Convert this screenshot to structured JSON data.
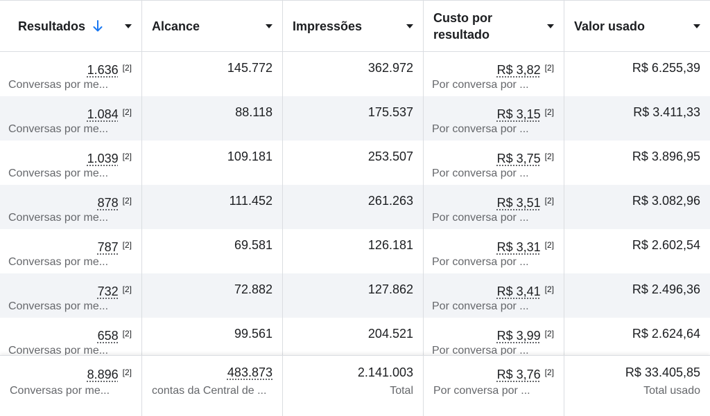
{
  "columns": [
    {
      "label": "Resultados",
      "sorted": true,
      "sort_icon": "arrow-down-icon"
    },
    {
      "label": "Alcance"
    },
    {
      "label": "Impressões"
    },
    {
      "label": "Custo por resultado"
    },
    {
      "label": "Valor usado"
    }
  ],
  "rows": [
    {
      "resultados": "1.636",
      "resultados_note": "[2]",
      "resultados_sub": "Conversas por me...",
      "alcance": "145.772",
      "impressoes": "362.972",
      "custo": "R$ 3,82",
      "custo_note": "[2]",
      "custo_sub": "Por conversa por ...",
      "valor": "R$ 6.255,39"
    },
    {
      "resultados": "1.084",
      "resultados_note": "[2]",
      "resultados_sub": "Conversas por me...",
      "alcance": "88.118",
      "impressoes": "175.537",
      "custo": "R$ 3,15",
      "custo_note": "[2]",
      "custo_sub": "Por conversa por ...",
      "valor": "R$ 3.411,33"
    },
    {
      "resultados": "1.039",
      "resultados_note": "[2]",
      "resultados_sub": "Conversas por me...",
      "alcance": "109.181",
      "impressoes": "253.507",
      "custo": "R$ 3,75",
      "custo_note": "[2]",
      "custo_sub": "Por conversa por ...",
      "valor": "R$ 3.896,95"
    },
    {
      "resultados": "878",
      "resultados_note": "[2]",
      "resultados_sub": "Conversas por me...",
      "alcance": "111.452",
      "impressoes": "261.263",
      "custo": "R$ 3,51",
      "custo_note": "[2]",
      "custo_sub": "Por conversa por ...",
      "valor": "R$ 3.082,96"
    },
    {
      "resultados": "787",
      "resultados_note": "[2]",
      "resultados_sub": "Conversas por me...",
      "alcance": "69.581",
      "impressoes": "126.181",
      "custo": "R$ 3,31",
      "custo_note": "[2]",
      "custo_sub": "Por conversa por ...",
      "valor": "R$ 2.602,54"
    },
    {
      "resultados": "732",
      "resultados_note": "[2]",
      "resultados_sub": "Conversas por me...",
      "alcance": "72.882",
      "impressoes": "127.862",
      "custo": "R$ 3,41",
      "custo_note": "[2]",
      "custo_sub": "Por conversa por ...",
      "valor": "R$ 2.496,36"
    },
    {
      "resultados": "658",
      "resultados_note": "[2]",
      "resultados_sub": "Conversas por me...",
      "alcance": "99.561",
      "impressoes": "204.521",
      "custo": "R$ 3,99",
      "custo_note": "[2]",
      "custo_sub": "Por conversa por ...",
      "valor": "R$ 2.624,64"
    }
  ],
  "totals": {
    "resultados": "8.896",
    "resultados_note": "[2]",
    "resultados_sub": "Conversas por me...",
    "alcance": "483.873",
    "alcance_sub": "contas da Central de ...",
    "impressoes": "2.141.003",
    "impressoes_sub": "Total",
    "custo": "R$ 3,76",
    "custo_note": "[2]",
    "custo_sub": "Por conversa por ...",
    "valor": "R$ 33.405,85",
    "valor_sub": "Total usado"
  },
  "colors": {
    "accent": "#1877f2",
    "alt_row": "#f2f4f7",
    "muted_text": "#65676b"
  }
}
